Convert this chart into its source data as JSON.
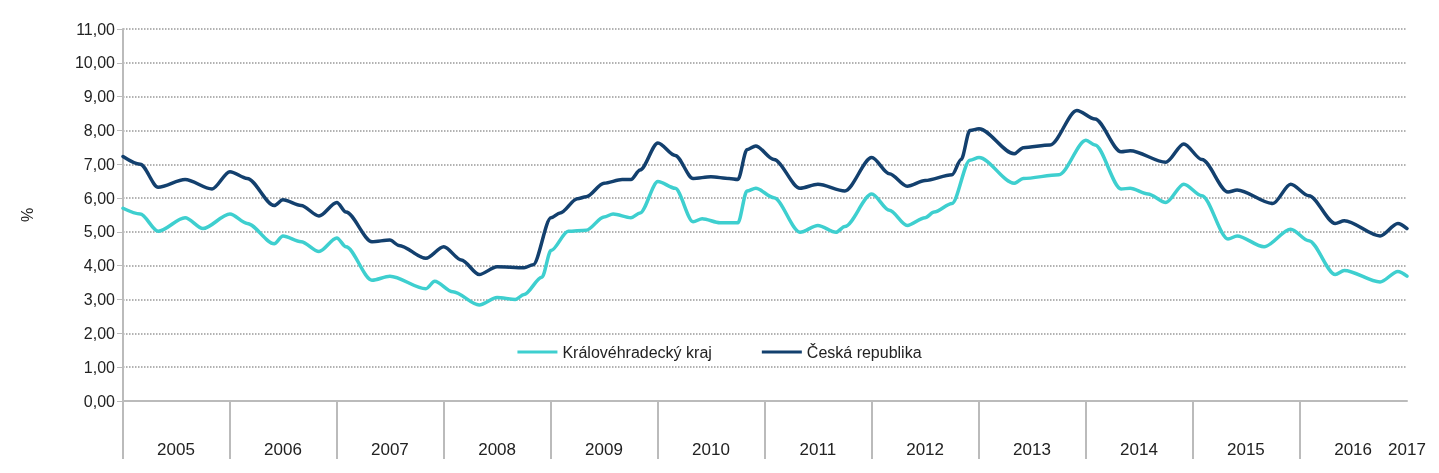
{
  "chart_data": {
    "type": "line",
    "ylabel": "%",
    "xlim": [
      "2005-01",
      "2017-01"
    ],
    "ylim": [
      0,
      11
    ],
    "xticks": [
      {
        "value": "2005-01",
        "label": null
      },
      {
        "value": "2005-07",
        "label": "2005"
      },
      {
        "value": "2006-01",
        "label": null
      },
      {
        "value": "2006-07",
        "label": "2006"
      },
      {
        "value": "2007-01",
        "label": null
      },
      {
        "value": "2007-07",
        "label": "2007"
      },
      {
        "value": "2008-01",
        "label": null
      },
      {
        "value": "2008-07",
        "label": "2008"
      },
      {
        "value": "2009-01",
        "label": null
      },
      {
        "value": "2009-07",
        "label": "2009"
      },
      {
        "value": "2010-01",
        "label": null
      },
      {
        "value": "2010-07",
        "label": "2010"
      },
      {
        "value": "2011-01",
        "label": null
      },
      {
        "value": "2011-07",
        "label": "2011"
      },
      {
        "value": "2012-01",
        "label": null
      },
      {
        "value": "2012-07",
        "label": "2012"
      },
      {
        "value": "2013-01",
        "label": null
      },
      {
        "value": "2013-07",
        "label": "2013"
      },
      {
        "value": "2014-01",
        "label": null
      },
      {
        "value": "2014-07",
        "label": "2014"
      },
      {
        "value": "2015-01",
        "label": null
      },
      {
        "value": "2015-07",
        "label": "2015"
      },
      {
        "value": "2016-01",
        "label": null
      },
      {
        "value": "2016-07",
        "label": "2016"
      },
      {
        "value": "2017-01",
        "label": "2017"
      }
    ],
    "yticks": [
      {
        "value": 0,
        "label": "0,00"
      },
      {
        "value": 1,
        "label": "1,00"
      },
      {
        "value": 2,
        "label": "2,00"
      },
      {
        "value": 3,
        "label": "3,00"
      },
      {
        "value": 4,
        "label": "4,00"
      },
      {
        "value": 5,
        "label": "5,00"
      },
      {
        "value": 6,
        "label": "6,00"
      },
      {
        "value": 7,
        "label": "7,00"
      },
      {
        "value": 8,
        "label": "8,00"
      },
      {
        "value": 9,
        "label": "9,00"
      },
      {
        "value": 10,
        "label": "10,00"
      },
      {
        "value": 11,
        "label": "11,00"
      }
    ],
    "grid": "y",
    "legend": "bottom",
    "marker": "none",
    "line_style": "solid",
    "series": [
      {
        "name": "Královéhradecký kraj",
        "color": "#3ecfcf",
        "x": [
          "2005-01",
          "2005-03",
          "2005-05",
          "2005-08",
          "2005-10",
          "2006-01",
          "2006-03",
          "2006-06",
          "2006-07",
          "2006-09",
          "2006-11",
          "2007-01",
          "2007-02",
          "2007-05",
          "2007-07",
          "2007-11",
          "2007-12",
          "2008-02",
          "2008-05",
          "2008-07",
          "2008-09",
          "2008-10",
          "2008-12",
          "2009-01",
          "2009-03",
          "2009-05",
          "2009-07",
          "2009-08",
          "2009-10",
          "2009-11",
          "2010-01",
          "2010-03",
          "2010-05",
          "2010-06",
          "2010-08",
          "2010-10",
          "2010-11",
          "2010-12",
          "2011-02",
          "2011-05",
          "2011-07",
          "2011-09",
          "2011-10",
          "2012-01",
          "2012-03",
          "2012-05",
          "2012-07",
          "2012-08",
          "2012-10",
          "2012-12",
          "2013-01",
          "2013-05",
          "2013-06",
          "2013-10",
          "2014-01",
          "2014-02",
          "2014-05",
          "2014-06",
          "2014-08",
          "2014-10",
          "2014-12",
          "2015-02",
          "2015-05",
          "2015-06",
          "2015-09",
          "2015-12",
          "2016-02",
          "2016-05",
          "2016-06",
          "2016-10",
          "2016-12",
          "2017-01"
        ],
        "values": [
          5.7,
          5.53,
          5.02,
          5.42,
          5.1,
          5.53,
          5.25,
          4.65,
          4.88,
          4.71,
          4.42,
          4.82,
          4.56,
          3.57,
          3.69,
          3.32,
          3.54,
          3.23,
          2.84,
          3.06,
          3.0,
          3.15,
          3.66,
          4.45,
          5.02,
          5.05,
          5.44,
          5.53,
          5.42,
          5.56,
          6.49,
          6.29,
          5.3,
          5.39,
          5.27,
          5.27,
          6.21,
          6.29,
          6.01,
          4.99,
          5.19,
          4.99,
          5.16,
          6.12,
          5.64,
          5.19,
          5.42,
          5.59,
          5.84,
          7.12,
          7.2,
          6.44,
          6.58,
          6.69,
          7.71,
          7.57,
          6.27,
          6.29,
          6.12,
          5.87,
          6.41,
          6.07,
          4.79,
          4.88,
          4.56,
          5.08,
          4.74,
          3.74,
          3.86,
          3.52,
          3.83,
          3.69
        ]
      },
      {
        "name": "Česká republika",
        "color": "#13406e",
        "x": [
          "2005-01",
          "2005-03",
          "2005-05",
          "2005-08",
          "2005-11",
          "2006-01",
          "2006-03",
          "2006-06",
          "2006-07",
          "2006-09",
          "2006-11",
          "2007-01",
          "2007-02",
          "2007-05",
          "2007-07",
          "2007-08",
          "2007-11",
          "2008-01",
          "2008-03",
          "2008-05",
          "2008-07",
          "2008-10",
          "2008-11",
          "2009-01",
          "2009-02",
          "2009-04",
          "2009-05",
          "2009-07",
          "2009-09",
          "2009-10",
          "2009-11",
          "2010-01",
          "2010-03",
          "2010-05",
          "2010-07",
          "2010-09",
          "2010-10",
          "2010-11",
          "2010-12",
          "2011-02",
          "2011-05",
          "2011-07",
          "2011-10",
          "2012-01",
          "2012-03",
          "2012-05",
          "2012-07",
          "2012-10",
          "2012-11",
          "2012-12",
          "2013-01",
          "2013-05",
          "2013-06",
          "2013-09",
          "2013-12",
          "2014-02",
          "2014-05",
          "2014-06",
          "2014-10",
          "2014-12",
          "2015-02",
          "2015-05",
          "2015-06",
          "2015-10",
          "2015-12",
          "2016-02",
          "2016-05",
          "2016-06",
          "2016-10",
          "2016-12",
          "2017-01"
        ],
        "values": [
          7.23,
          7.0,
          6.32,
          6.55,
          6.27,
          6.78,
          6.58,
          5.78,
          5.95,
          5.78,
          5.47,
          5.87,
          5.59,
          4.71,
          4.76,
          4.6,
          4.22,
          4.56,
          4.17,
          3.74,
          3.97,
          3.94,
          4.03,
          5.42,
          5.56,
          5.98,
          6.04,
          6.44,
          6.55,
          6.55,
          6.83,
          7.63,
          7.26,
          6.58,
          6.63,
          6.58,
          6.55,
          7.43,
          7.54,
          7.14,
          6.29,
          6.41,
          6.21,
          7.2,
          6.72,
          6.35,
          6.52,
          6.69,
          7.14,
          8.0,
          8.05,
          7.31,
          7.49,
          7.57,
          8.59,
          8.34,
          7.37,
          7.4,
          7.06,
          7.6,
          7.14,
          6.18,
          6.24,
          5.84,
          6.41,
          6.07,
          5.25,
          5.33,
          4.88,
          5.25,
          5.1
        ]
      }
    ]
  }
}
